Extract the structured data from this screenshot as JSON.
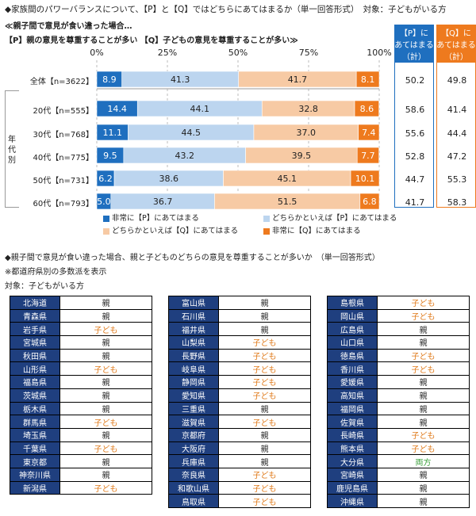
{
  "header": {
    "line1": "◆家族間のパワーバランスについて、【P】と【Q】ではどちらにあてはまるか（単一回答形式）　対象：子どもがいる方",
    "line2": "≪親子間で意見が食い違った場合…",
    "line3": "【P】親の意見を尊重することが多い 【Q】子どもの意見を尊重することが多い≫"
  },
  "summary_headers": {
    "p": "【P】に\nあてはまる\n（計）",
    "q": "【Q】に\nあてはまる\n（計）",
    "p_color": "#1f6fbf",
    "q_color": "#ee7a1e"
  },
  "age_group_label": "年代別",
  "colors": {
    "p_strong": "#1f6fbf",
    "p_weak": "#bcd5ef",
    "q_weak": "#f7caa4",
    "q_strong": "#ee7a1e"
  },
  "chart_data": {
    "type": "bar",
    "stacked": true,
    "orientation": "horizontal",
    "xlim": [
      0,
      100
    ],
    "x_ticks": [
      "0%",
      "25%",
      "50%",
      "75%",
      "100%"
    ],
    "categories": [
      "全体【n=3622】",
      "20代【n=555】",
      "30代【n=768】",
      "40代【n=775】",
      "50代【n=731】",
      "60代【n=793】"
    ],
    "series": [
      {
        "name": "非常に【P】にあてはまる",
        "values": [
          8.9,
          14.4,
          11.1,
          9.5,
          6.2,
          5.0
        ]
      },
      {
        "name": "どちらかといえば【P】にあてはまる",
        "values": [
          41.3,
          44.1,
          44.5,
          43.2,
          38.6,
          36.7
        ]
      },
      {
        "name": "どちらかといえば【Q】にあてはまる",
        "values": [
          41.7,
          32.8,
          37.0,
          39.5,
          45.1,
          51.5
        ]
      },
      {
        "name": "非常に【Q】にあてはまる",
        "values": [
          8.1,
          8.6,
          7.4,
          7.7,
          10.1,
          6.8
        ]
      }
    ],
    "p_total": [
      50.2,
      58.6,
      55.6,
      52.8,
      44.7,
      41.7
    ],
    "q_total": [
      49.8,
      41.4,
      44.4,
      47.2,
      55.3,
      58.3
    ],
    "grid": true,
    "legend_position": "bottom"
  },
  "section2": {
    "title": "◆親子間で意見が食い違った場合、親と子どものどちらの意見を尊重することが多いか　（単一回答形式）",
    "note": "※都道府県別の多数派を表示",
    "target": "対象：子どもがいる方",
    "columns": [
      [
        {
          "name": "北海道",
          "value": "親"
        },
        {
          "name": "青森県",
          "value": "親"
        },
        {
          "name": "岩手県",
          "value": "子ども"
        },
        {
          "name": "宮城県",
          "value": "親"
        },
        {
          "name": "秋田県",
          "value": "親"
        },
        {
          "name": "山形県",
          "value": "子ども"
        },
        {
          "name": "福島県",
          "value": "親"
        },
        {
          "name": "茨城県",
          "value": "親"
        },
        {
          "name": "栃木県",
          "value": "親"
        },
        {
          "name": "群馬県",
          "value": "子ども"
        },
        {
          "name": "埼玉県",
          "value": "親"
        },
        {
          "name": "千葉県",
          "value": "子ども"
        },
        {
          "name": "東京都",
          "value": "親"
        },
        {
          "name": "神奈川県",
          "value": "親"
        },
        {
          "name": "新潟県",
          "value": "子ども"
        }
      ],
      [
        {
          "name": "富山県",
          "value": "親"
        },
        {
          "name": "石川県",
          "value": "親"
        },
        {
          "name": "福井県",
          "value": "親"
        },
        {
          "name": "山梨県",
          "value": "子ども"
        },
        {
          "name": "長野県",
          "value": "子ども"
        },
        {
          "name": "岐阜県",
          "value": "子ども"
        },
        {
          "name": "静岡県",
          "value": "子ども"
        },
        {
          "name": "愛知県",
          "value": "子ども"
        },
        {
          "name": "三重県",
          "value": "親"
        },
        {
          "name": "滋賀県",
          "value": "子ども"
        },
        {
          "name": "京都府",
          "value": "親"
        },
        {
          "name": "大阪府",
          "value": "親"
        },
        {
          "name": "兵庫県",
          "value": "親"
        },
        {
          "name": "奈良県",
          "value": "子ども"
        },
        {
          "name": "和歌山県",
          "value": "子ども"
        },
        {
          "name": "鳥取県",
          "value": "子ども"
        }
      ],
      [
        {
          "name": "島根県",
          "value": "子ども"
        },
        {
          "name": "岡山県",
          "value": "子ども"
        },
        {
          "name": "広島県",
          "value": "親"
        },
        {
          "name": "山口県",
          "value": "親"
        },
        {
          "name": "徳島県",
          "value": "子ども"
        },
        {
          "name": "香川県",
          "value": "子ども"
        },
        {
          "name": "愛媛県",
          "value": "親"
        },
        {
          "name": "高知県",
          "value": "親"
        },
        {
          "name": "福岡県",
          "value": "親"
        },
        {
          "name": "佐賀県",
          "value": "親"
        },
        {
          "name": "長崎県",
          "value": "子ども"
        },
        {
          "name": "熊本県",
          "value": "子ども"
        },
        {
          "name": "大分県",
          "value": "両方"
        },
        {
          "name": "宮崎県",
          "value": "親"
        },
        {
          "name": "鹿児島県",
          "value": "親"
        },
        {
          "name": "沖縄県",
          "value": "親"
        }
      ]
    ]
  }
}
